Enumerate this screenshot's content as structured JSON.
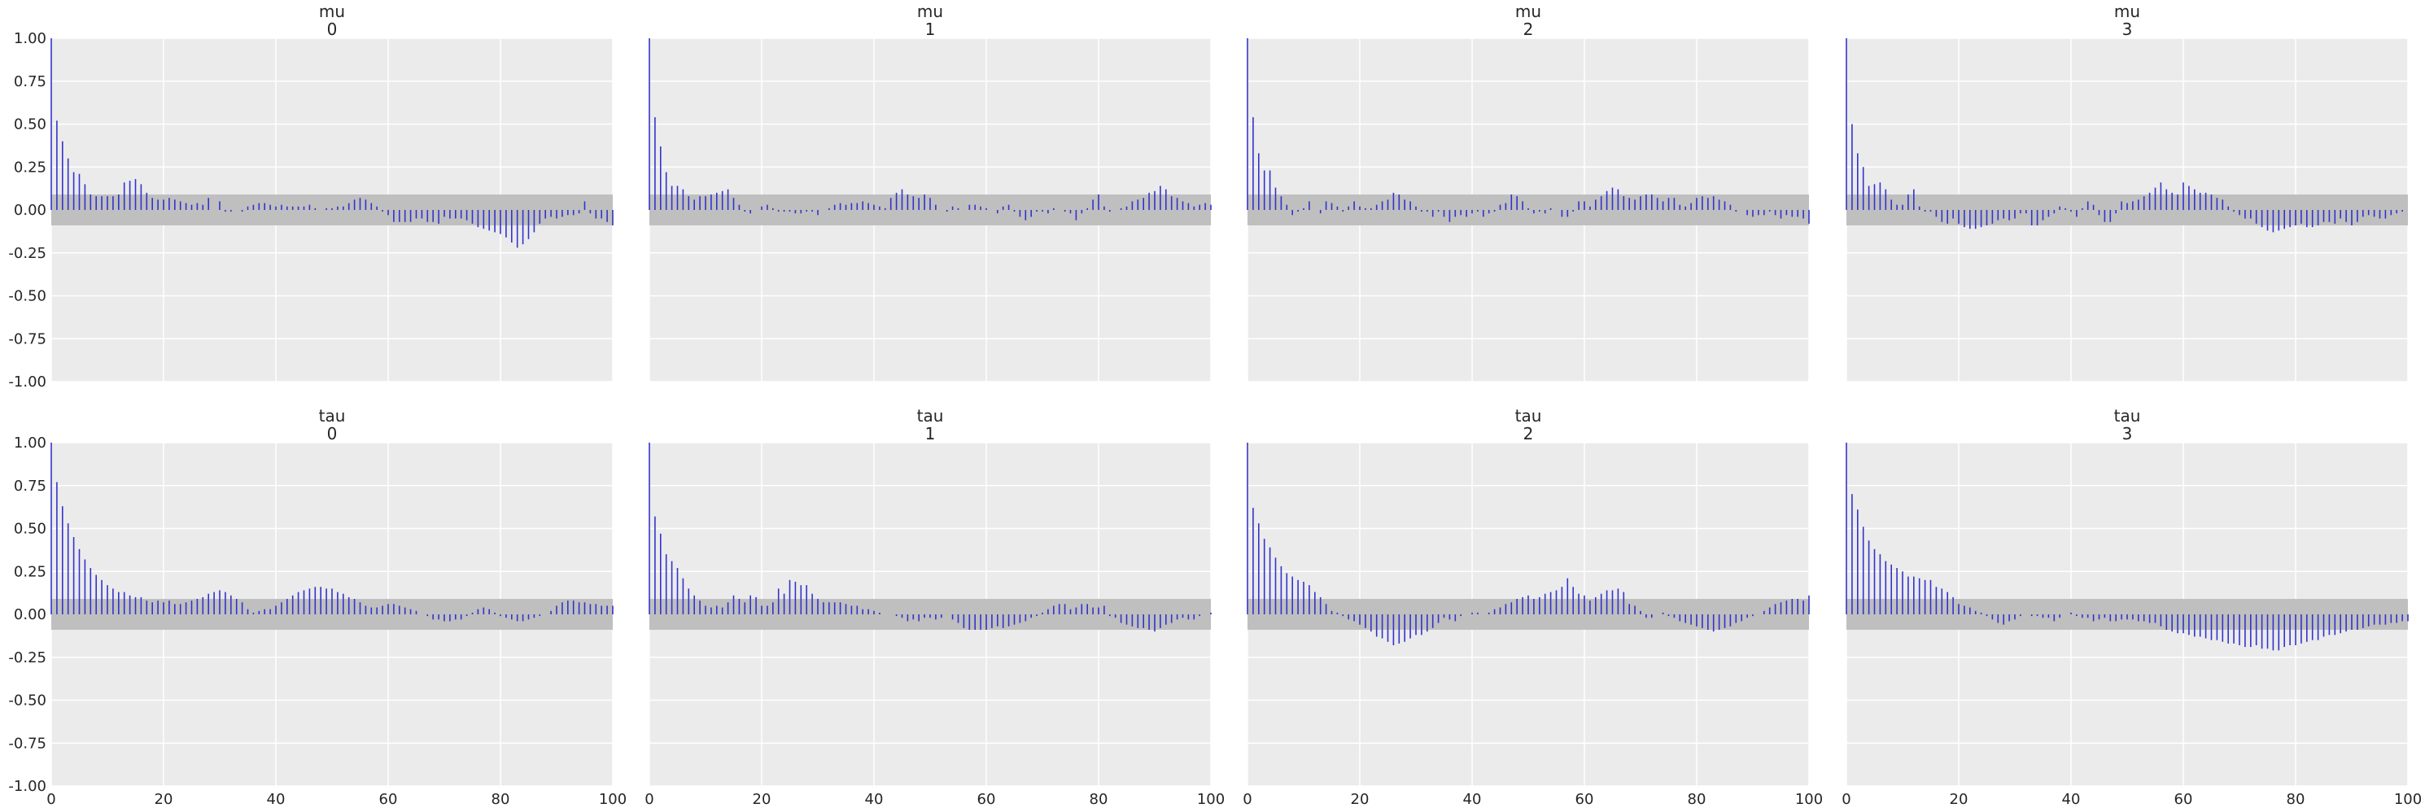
{
  "chart_data": {
    "type": "bar",
    "kind": "autocorrelation",
    "grid": true,
    "shared_x": true,
    "shared_y": true,
    "xlim": [
      0,
      100
    ],
    "ylim": [
      -1,
      1
    ],
    "x_ticks": [
      "0",
      "20",
      "40",
      "60",
      "80",
      "100"
    ],
    "y_ticks": [
      "1.00",
      "0.75",
      "0.50",
      "0.25",
      "0.00",
      "-0.25",
      "-0.50",
      "-0.75",
      "-1.00"
    ],
    "confidence_band": [
      -0.09,
      0.09
    ],
    "colors": {
      "bars": "#3333cc",
      "band": "#bfbfbf",
      "background": "#ebebeb",
      "grid": "#ffffff"
    },
    "panels": [
      {
        "title": "mu",
        "subtitle": "0",
        "values": [
          1.0,
          0.52,
          0.4,
          0.3,
          0.22,
          0.21,
          0.15,
          0.09,
          0.08,
          0.08,
          0.08,
          0.08,
          0.09,
          0.16,
          0.17,
          0.18,
          0.15,
          0.1,
          0.07,
          0.06,
          0.06,
          0.07,
          0.06,
          0.05,
          0.04,
          0.03,
          0.04,
          0.03,
          0.07,
          0.0,
          0.05,
          -0.01,
          -0.01,
          0.0,
          -0.01,
          0.02,
          0.03,
          0.04,
          0.04,
          0.03,
          0.02,
          0.03,
          0.02,
          0.02,
          0.02,
          0.02,
          0.03,
          0.01,
          0.0,
          0.01,
          0.01,
          0.02,
          0.02,
          0.04,
          0.06,
          0.07,
          0.06,
          0.04,
          0.02,
          -0.01,
          -0.03,
          -0.07,
          -0.07,
          -0.07,
          -0.07,
          -0.05,
          -0.05,
          -0.07,
          -0.07,
          -0.08,
          -0.04,
          -0.05,
          -0.05,
          -0.05,
          -0.06,
          -0.08,
          -0.1,
          -0.11,
          -0.12,
          -0.13,
          -0.14,
          -0.16,
          -0.19,
          -0.22,
          -0.2,
          -0.17,
          -0.13,
          -0.08,
          -0.05,
          -0.04,
          -0.05,
          -0.04,
          -0.03,
          -0.03,
          -0.02,
          0.05,
          -0.02,
          -0.05,
          -0.05,
          -0.07,
          -0.09
        ]
      },
      {
        "title": "mu",
        "subtitle": "1",
        "values": [
          1.0,
          0.54,
          0.37,
          0.22,
          0.14,
          0.14,
          0.12,
          0.08,
          0.06,
          0.08,
          0.08,
          0.09,
          0.1,
          0.11,
          0.12,
          0.07,
          0.03,
          -0.01,
          -0.02,
          0.0,
          0.02,
          0.03,
          0.01,
          -0.01,
          -0.01,
          -0.01,
          -0.02,
          -0.02,
          -0.01,
          -0.01,
          -0.03,
          0.0,
          0.01,
          0.03,
          0.04,
          0.03,
          0.04,
          0.04,
          0.05,
          0.04,
          0.03,
          0.02,
          0.01,
          0.07,
          0.1,
          0.12,
          0.09,
          0.08,
          0.07,
          0.09,
          0.07,
          0.03,
          0.0,
          -0.01,
          0.02,
          0.01,
          0.0,
          0.03,
          0.03,
          0.02,
          0.01,
          0.0,
          -0.02,
          0.02,
          0.03,
          -0.01,
          -0.04,
          -0.06,
          -0.04,
          -0.01,
          -0.01,
          -0.02,
          0.01,
          0.0,
          -0.01,
          -0.02,
          -0.06,
          -0.02,
          0.01,
          0.06,
          0.09,
          0.02,
          -0.01,
          0.0,
          0.01,
          0.02,
          0.05,
          0.06,
          0.07,
          0.1,
          0.11,
          0.14,
          0.12,
          0.08,
          0.07,
          0.05,
          0.04,
          0.02,
          0.03,
          0.04,
          0.03
        ]
      },
      {
        "title": "mu",
        "subtitle": "2",
        "values": [
          1.0,
          0.54,
          0.33,
          0.23,
          0.23,
          0.13,
          0.08,
          0.03,
          -0.03,
          -0.01,
          0.01,
          0.05,
          0.0,
          -0.02,
          0.05,
          0.04,
          0.02,
          -0.01,
          0.02,
          0.05,
          0.02,
          0.01,
          0.01,
          0.03,
          0.05,
          0.06,
          0.1,
          0.09,
          0.06,
          0.05,
          0.02,
          -0.01,
          -0.01,
          -0.04,
          -0.01,
          -0.04,
          -0.07,
          -0.04,
          -0.03,
          -0.04,
          -0.02,
          -0.01,
          -0.04,
          -0.02,
          -0.01,
          0.03,
          0.04,
          0.09,
          0.08,
          0.05,
          0.01,
          -0.02,
          -0.01,
          -0.02,
          0.01,
          0.0,
          -0.04,
          -0.04,
          -0.01,
          0.05,
          0.05,
          0.02,
          0.06,
          0.08,
          0.11,
          0.13,
          0.12,
          0.08,
          0.07,
          0.06,
          0.08,
          0.09,
          0.09,
          0.07,
          0.05,
          0.07,
          0.07,
          0.03,
          0.02,
          0.04,
          0.07,
          0.08,
          0.07,
          0.08,
          0.06,
          0.05,
          0.03,
          -0.01,
          0.0,
          -0.03,
          -0.04,
          -0.03,
          -0.03,
          -0.01,
          -0.03,
          -0.05,
          -0.03,
          -0.04,
          -0.04,
          -0.05,
          -0.08
        ]
      },
      {
        "title": "mu",
        "subtitle": "3",
        "values": [
          1.0,
          0.5,
          0.33,
          0.25,
          0.14,
          0.15,
          0.16,
          0.12,
          0.06,
          0.03,
          0.03,
          0.09,
          0.12,
          0.02,
          -0.01,
          -0.01,
          -0.04,
          -0.07,
          -0.08,
          -0.05,
          -0.08,
          -0.1,
          -0.11,
          -0.11,
          -0.1,
          -0.09,
          -0.08,
          -0.06,
          -0.05,
          -0.06,
          -0.05,
          -0.02,
          -0.02,
          -0.09,
          -0.09,
          -0.06,
          -0.04,
          -0.02,
          0.02,
          0.01,
          -0.01,
          -0.04,
          0.01,
          0.05,
          0.03,
          -0.03,
          -0.07,
          -0.07,
          -0.02,
          0.05,
          0.04,
          0.05,
          0.06,
          0.08,
          0.1,
          0.13,
          0.16,
          0.12,
          0.1,
          0.09,
          0.16,
          0.14,
          0.12,
          0.1,
          0.1,
          0.09,
          0.07,
          0.06,
          0.02,
          -0.01,
          -0.03,
          -0.05,
          -0.05,
          -0.08,
          -0.1,
          -0.12,
          -0.13,
          -0.12,
          -0.11,
          -0.1,
          -0.09,
          -0.08,
          -0.1,
          -0.1,
          -0.09,
          -0.07,
          -0.07,
          -0.08,
          -0.05,
          -0.07,
          -0.09,
          -0.07,
          -0.04,
          -0.03,
          -0.04,
          -0.05,
          -0.05,
          -0.03,
          -0.02,
          -0.01,
          0.0
        ]
      },
      {
        "title": "tau",
        "subtitle": "0",
        "values": [
          1.0,
          0.77,
          0.63,
          0.53,
          0.45,
          0.38,
          0.32,
          0.27,
          0.23,
          0.2,
          0.17,
          0.15,
          0.13,
          0.13,
          0.11,
          0.1,
          0.1,
          0.08,
          0.07,
          0.08,
          0.07,
          0.08,
          0.06,
          0.06,
          0.07,
          0.08,
          0.09,
          0.1,
          0.12,
          0.13,
          0.14,
          0.13,
          0.11,
          0.09,
          0.07,
          0.03,
          0.01,
          0.02,
          0.03,
          0.03,
          0.05,
          0.07,
          0.09,
          0.11,
          0.13,
          0.14,
          0.15,
          0.16,
          0.16,
          0.15,
          0.15,
          0.13,
          0.12,
          0.1,
          0.09,
          0.07,
          0.05,
          0.04,
          0.04,
          0.05,
          0.06,
          0.06,
          0.05,
          0.04,
          0.03,
          0.02,
          0.0,
          -0.01,
          -0.03,
          -0.03,
          -0.04,
          -0.04,
          -0.03,
          -0.03,
          -0.01,
          0.01,
          0.03,
          0.04,
          0.03,
          0.01,
          -0.01,
          -0.02,
          -0.03,
          -0.04,
          -0.04,
          -0.03,
          -0.02,
          -0.01,
          0.0,
          0.02,
          0.05,
          0.07,
          0.08,
          0.08,
          0.07,
          0.07,
          0.06,
          0.06,
          0.05,
          0.05,
          0.05
        ]
      },
      {
        "title": "tau",
        "subtitle": "1",
        "values": [
          1.0,
          0.57,
          0.47,
          0.35,
          0.31,
          0.27,
          0.21,
          0.15,
          0.11,
          0.08,
          0.05,
          0.04,
          0.05,
          0.04,
          0.07,
          0.11,
          0.09,
          0.07,
          0.11,
          0.1,
          0.05,
          0.05,
          0.07,
          0.15,
          0.12,
          0.2,
          0.19,
          0.17,
          0.17,
          0.12,
          0.09,
          0.07,
          0.07,
          0.07,
          0.07,
          0.06,
          0.05,
          0.05,
          0.03,
          0.03,
          0.02,
          0.01,
          0.0,
          0.0,
          -0.01,
          -0.02,
          -0.04,
          -0.03,
          -0.04,
          -0.02,
          -0.02,
          -0.03,
          -0.02,
          0.0,
          -0.03,
          -0.05,
          -0.08,
          -0.09,
          -0.09,
          -0.09,
          -0.09,
          -0.08,
          -0.07,
          -0.08,
          -0.07,
          -0.06,
          -0.05,
          -0.04,
          -0.02,
          -0.01,
          0.01,
          0.03,
          0.05,
          0.06,
          0.06,
          0.03,
          0.04,
          0.06,
          0.06,
          0.04,
          0.04,
          0.05,
          -0.01,
          -0.02,
          -0.05,
          -0.06,
          -0.07,
          -0.08,
          -0.08,
          -0.09,
          -0.1,
          -0.08,
          -0.06,
          -0.05,
          -0.03,
          -0.02,
          -0.03,
          -0.03,
          -0.01,
          0.0,
          0.01
        ]
      },
      {
        "title": "tau",
        "subtitle": "2",
        "values": [
          1.0,
          0.62,
          0.53,
          0.44,
          0.39,
          0.33,
          0.28,
          0.24,
          0.22,
          0.2,
          0.19,
          0.17,
          0.13,
          0.1,
          0.06,
          0.02,
          0.01,
          -0.01,
          -0.03,
          -0.04,
          -0.06,
          -0.08,
          -0.1,
          -0.13,
          -0.14,
          -0.16,
          -0.18,
          -0.17,
          -0.16,
          -0.14,
          -0.12,
          -0.12,
          -0.1,
          -0.08,
          -0.05,
          -0.02,
          -0.03,
          -0.04,
          -0.01,
          0.0,
          0.01,
          0.01,
          0.0,
          0.01,
          0.03,
          0.04,
          0.06,
          0.07,
          0.09,
          0.1,
          0.11,
          0.09,
          0.1,
          0.12,
          0.13,
          0.14,
          0.16,
          0.21,
          0.16,
          0.12,
          0.11,
          0.08,
          0.1,
          0.12,
          0.14,
          0.14,
          0.15,
          0.13,
          0.06,
          0.05,
          0.02,
          -0.02,
          -0.02,
          0.0,
          0.01,
          -0.01,
          -0.02,
          -0.04,
          -0.05,
          -0.06,
          -0.07,
          -0.08,
          -0.09,
          -0.1,
          -0.09,
          -0.08,
          -0.07,
          -0.05,
          -0.04,
          -0.02,
          -0.01,
          0.0,
          0.02,
          0.04,
          0.06,
          0.07,
          0.08,
          0.09,
          0.09,
          0.08,
          0.11
        ]
      },
      {
        "title": "tau",
        "subtitle": "3",
        "values": [
          1.0,
          0.7,
          0.61,
          0.51,
          0.43,
          0.38,
          0.35,
          0.31,
          0.29,
          0.27,
          0.25,
          0.22,
          0.22,
          0.21,
          0.2,
          0.2,
          0.16,
          0.15,
          0.13,
          0.1,
          0.06,
          0.05,
          0.04,
          0.02,
          0.01,
          -0.01,
          -0.03,
          -0.05,
          -0.06,
          -0.04,
          -0.03,
          -0.01,
          0.0,
          -0.01,
          -0.01,
          -0.02,
          -0.02,
          -0.04,
          -0.02,
          0.0,
          0.01,
          -0.01,
          -0.02,
          -0.02,
          -0.04,
          -0.03,
          -0.02,
          -0.04,
          -0.04,
          -0.03,
          -0.03,
          -0.03,
          -0.04,
          -0.04,
          -0.05,
          -0.05,
          -0.07,
          -0.09,
          -0.1,
          -0.11,
          -0.11,
          -0.12,
          -0.13,
          -0.13,
          -0.14,
          -0.15,
          -0.15,
          -0.16,
          -0.17,
          -0.17,
          -0.18,
          -0.19,
          -0.19,
          -0.18,
          -0.2,
          -0.2,
          -0.21,
          -0.21,
          -0.19,
          -0.18,
          -0.18,
          -0.17,
          -0.16,
          -0.15,
          -0.15,
          -0.13,
          -0.12,
          -0.12,
          -0.11,
          -0.1,
          -0.09,
          -0.09,
          -0.08,
          -0.07,
          -0.06,
          -0.06,
          -0.06,
          -0.05,
          -0.05,
          -0.04,
          -0.04
        ]
      }
    ]
  }
}
